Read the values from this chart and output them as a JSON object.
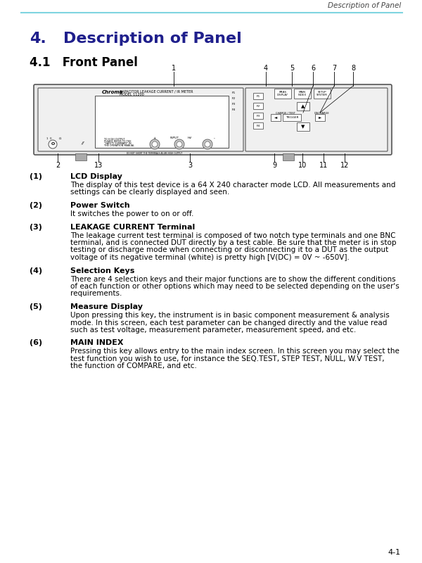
{
  "header_text": "Description of Panel",
  "header_line_color": "#7FD4E0",
  "title_num": "4.",
  "title_text": "Description of Panel",
  "title_color": "#1F1F8C",
  "subtitle": "4.1   Front Panel",
  "subtitle_color": "#000000",
  "page_number": "4-1",
  "diagram": {
    "label_nums_top": [
      "1",
      "4",
      "5",
      "6",
      "7",
      "8"
    ],
    "label_nums_bot": [
      "2",
      "13",
      "3",
      "9",
      "10",
      "11",
      "12"
    ]
  },
  "body_items": [
    {
      "num": "(1)",
      "bold": "LCD Display",
      "text": [
        "The display of this test device is a 64 X 240 character mode LCD. All measurements and",
        "settings can be clearly displayed and seen."
      ]
    },
    {
      "num": "(2)",
      "bold": "Power Switch",
      "text": [
        "It switches the power to on or off."
      ]
    },
    {
      "num": "(3)",
      "bold": "LEAKAGE CURRENT Terminal",
      "text": [
        "The leakage current test terminal is composed of two notch type terminals and one BNC",
        "terminal, and is connected DUT directly by a test cable. Be sure that the meter is in stop",
        "testing or discharge mode when connecting or disconnecting it to a DUT as the output",
        "voltage of its negative terminal (white) is pretty high [V(DC) = 0V ~ -650V]."
      ]
    },
    {
      "num": "(4)",
      "bold": "Selection Keys",
      "text": [
        "There are 4 selection keys and their major functions are to show the different conditions",
        "of each function or other options which may need to be selected depending on the user's",
        "requirements."
      ]
    },
    {
      "num": "(5)",
      "bold": "Measure Display",
      "text": [
        "Upon pressing this key, the instrument is in basic component measurement & analysis",
        "mode. In this screen, each test parameter can be changed directly and the value read",
        "such as test voltage, measurement parameter, measurement speed, and etc."
      ]
    },
    {
      "num": "(6)",
      "bold": "MAIN INDEX",
      "text": [
        "Pressing this key allows entry to the main index screen. In this screen you may select the",
        "test function you wish to use, for instance the SEQ.TEST, STEP TEST, NULL, W.V TEST,",
        "the function of COMPARE, and etc."
      ]
    }
  ]
}
